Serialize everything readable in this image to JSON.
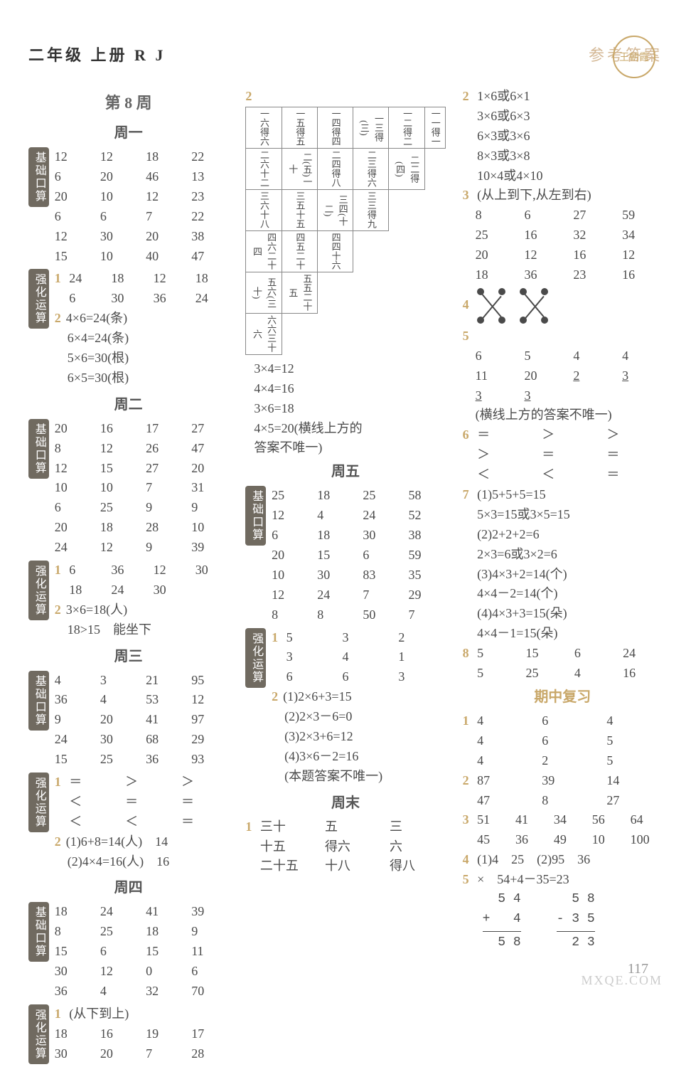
{
  "header": {
    "left": "二年级 上册 R J",
    "right": "参考答案",
    "seal": "王朝霞"
  },
  "labels": {
    "basic": "基础口算",
    "enhance": "强化运算"
  },
  "week_title": "第 8 周",
  "days": {
    "d1": "周一",
    "d2": "周二",
    "d3": "周三",
    "d4": "周四",
    "d5": "周五",
    "d6": "周末",
    "mid": "期中复习"
  },
  "col1": {
    "d1_basic": [
      "12",
      "12",
      "18",
      "22",
      "6",
      "20",
      "46",
      "13",
      "20",
      "10",
      "12",
      "23",
      "6",
      "6",
      "7",
      "22",
      "12",
      "30",
      "20",
      "38",
      "15",
      "10",
      "40",
      "47"
    ],
    "d1_enh1": [
      "24",
      "18",
      "12",
      "18",
      "6",
      "30",
      "36",
      "24"
    ],
    "d1_enh2": [
      "4×6=24(条)",
      "6×4=24(条)",
      "5×6=30(根)",
      "6×5=30(根)"
    ],
    "d2_basic": [
      "20",
      "16",
      "17",
      "27",
      "8",
      "12",
      "26",
      "47",
      "12",
      "15",
      "27",
      "20",
      "10",
      "10",
      "7",
      "31",
      "6",
      "25",
      "9",
      "9",
      "20",
      "18",
      "28",
      "10",
      "24",
      "12",
      "9",
      "39"
    ],
    "d2_enh1": [
      "6",
      "36",
      "12",
      "30",
      "18",
      "24",
      "30",
      ""
    ],
    "d2_enh2": [
      "3×6=18(人)",
      "18>15　能坐下"
    ],
    "d3_basic": [
      "4",
      "3",
      "21",
      "95",
      "36",
      "4",
      "53",
      "12",
      "9",
      "20",
      "41",
      "97",
      "24",
      "30",
      "68",
      "29",
      "15",
      "25",
      "36",
      "93"
    ],
    "d3_enh1": [
      "＝",
      "＞",
      "＞",
      "＜",
      "＝",
      "＝",
      "＜",
      "＜",
      "＝"
    ],
    "d3_enh2": [
      "(1)6+8=14(人)　14",
      "(2)4×4=16(人)　16"
    ],
    "d4_basic": [
      "18",
      "24",
      "41",
      "39",
      "8",
      "25",
      "18",
      "9",
      "15",
      "6",
      "15",
      "11",
      "30",
      "12",
      "0",
      "6",
      "36",
      "4",
      "32",
      "70"
    ],
    "d4_enh_note": "(从下到上)",
    "d4_enh1": [
      "18",
      "16",
      "19",
      "17",
      "30",
      "20",
      "7",
      "28"
    ]
  },
  "col2": {
    "mult_rows": [
      [
        "一六得六",
        "一五得五",
        "一四得四",
        "一三得(三)",
        "一二得二",
        "一一得一"
      ],
      [
        "二六十二",
        "二(五)一十",
        "二四得八",
        "二三得六",
        "二二得(四)"
      ],
      [
        "三六十八",
        "三五十五",
        "三四(十二)",
        "三三得九"
      ],
      [
        "四六二十四",
        "四五二十",
        "四四十六"
      ],
      [
        "五六(三十)",
        "五五二十五"
      ],
      [
        "六六三十六"
      ]
    ],
    "eq_lines": [
      "3×4=12",
      "4×4=16",
      "3×6=18",
      "4×5=20(横线上方的",
      "答案不唯一)"
    ],
    "d5_basic": [
      "25",
      "18",
      "25",
      "58",
      "12",
      "4",
      "24",
      "52",
      "6",
      "18",
      "30",
      "38",
      "20",
      "15",
      "6",
      "59",
      "10",
      "30",
      "83",
      "35",
      "12",
      "24",
      "7",
      "29",
      "8",
      "8",
      "50",
      "7"
    ],
    "d5_enh1": [
      "5",
      "3",
      "2",
      "3",
      "4",
      "1",
      "6",
      "6",
      "3"
    ],
    "d5_enh2": [
      "(1)2×6+3=15",
      "(2)2×3－6=0",
      "(3)2×3+6=12",
      "(4)3×6－2=16",
      "(本题答案不唯一)"
    ],
    "wk_lines": [
      "三十",
      "五",
      "三",
      "十五",
      "得六",
      "六",
      "二十五",
      "十八",
      "得八"
    ]
  },
  "col3": {
    "q2": [
      "1×6或6×1",
      "3×6或6×3",
      "6×3或3×6",
      "8×3或3×8",
      "10×4或4×10"
    ],
    "q3_note": "(从上到下,从左到右)",
    "q3": [
      "8",
      "6",
      "27",
      "59",
      "25",
      "16",
      "32",
      "34",
      "20",
      "12",
      "16",
      "12",
      "18",
      "36",
      "23",
      "16"
    ],
    "q5": [
      "6",
      "5",
      "4",
      "4",
      "11",
      "20",
      "2",
      "3",
      "3",
      "3"
    ],
    "q5_note": "(横线上方的答案不唯一)",
    "q6": [
      "＝",
      "＞",
      "＞",
      "＞",
      "＝",
      "＝",
      "＜",
      "＜",
      "＝"
    ],
    "q7": [
      "(1)5+5+5=15",
      "5×3=15或3×5=15",
      "(2)2+2+2=6",
      "2×3=6或3×2=6",
      "(3)4×3+2=14(个)",
      "4×4－2=14(个)",
      "(4)4×3+3=15(朵)",
      "4×4－1=15(朵)"
    ],
    "q8": [
      "5",
      "15",
      "6",
      "24",
      "5",
      "25",
      "4",
      "16"
    ],
    "mid_q1": [
      "4",
      "6",
      "4",
      "4",
      "6",
      "5",
      "4",
      "2",
      "5"
    ],
    "mid_q2": [
      "87",
      "39",
      "14",
      "47",
      "8",
      "27"
    ],
    "mid_q3": [
      "51",
      "41",
      "34",
      "56",
      "64",
      "45",
      "36",
      "49",
      "10",
      "100"
    ],
    "mid_q4": "(1)4　25　(2)95　36",
    "mid_q5_line": "×　54+4－35=23",
    "arith1": {
      "r1": "  5 4",
      "r2": "+   4",
      "r3": "  5 8"
    },
    "arith2": {
      "r1": "  5 8",
      "r2": "- 3 5",
      "r3": "  2 3"
    }
  },
  "page_number": "117",
  "watermark": "MXQE.COM"
}
